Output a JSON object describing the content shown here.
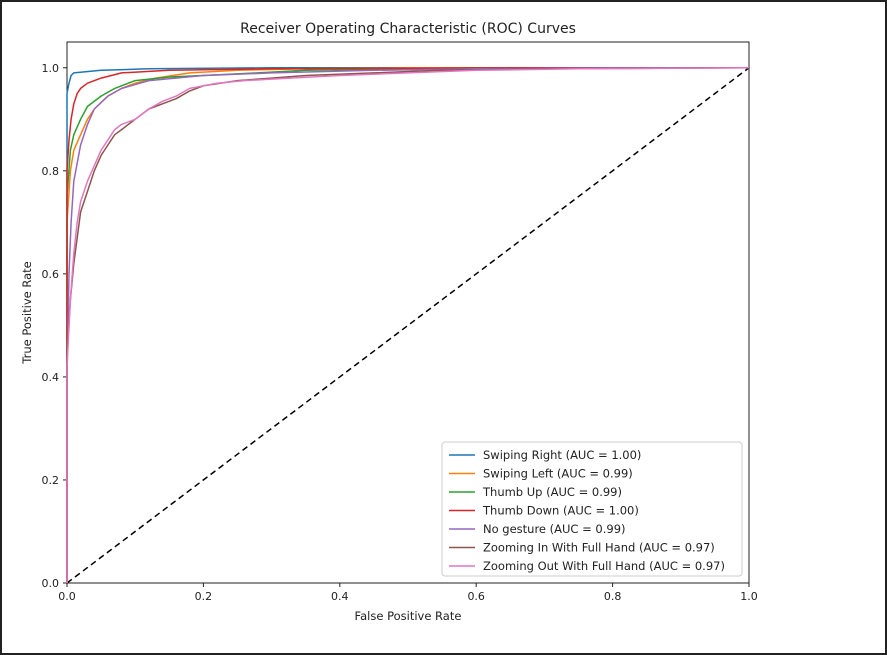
{
  "chart_data": {
    "type": "line",
    "title": "Receiver Operating Characteristic (ROC) Curves",
    "xlabel": "False Positive Rate",
    "ylabel": "True Positive Rate",
    "xlim": [
      0.0,
      1.0
    ],
    "ylim": [
      0.0,
      1.05
    ],
    "xticks": [
      "0.0",
      "0.2",
      "0.4",
      "0.6",
      "0.8",
      "1.0"
    ],
    "yticks": [
      "0.0",
      "0.2",
      "0.4",
      "0.6",
      "0.8",
      "1.0"
    ],
    "grid": false,
    "legend_position": "lower-right",
    "diagonal": {
      "style": "dashed",
      "color": "#000000",
      "points": [
        [
          0,
          0
        ],
        [
          1,
          1
        ]
      ]
    },
    "series": [
      {
        "name": "Swiping Right (AUC = 1.00)",
        "color": "#1f77b4",
        "points": [
          [
            0,
            0.0
          ],
          [
            0,
            0.95
          ],
          [
            0.003,
            0.97
          ],
          [
            0.006,
            0.985
          ],
          [
            0.01,
            0.99
          ],
          [
            0.05,
            0.995
          ],
          [
            0.12,
            0.998
          ],
          [
            0.3,
            1.0
          ],
          [
            1,
            1.0
          ]
        ]
      },
      {
        "name": "Swiping Left (AUC = 0.99)",
        "color": "#ff7f0e",
        "points": [
          [
            0,
            0.0
          ],
          [
            0,
            0.7
          ],
          [
            0.005,
            0.8
          ],
          [
            0.01,
            0.84
          ],
          [
            0.02,
            0.87
          ],
          [
            0.03,
            0.9
          ],
          [
            0.04,
            0.92
          ],
          [
            0.06,
            0.945
          ],
          [
            0.08,
            0.96
          ],
          [
            0.1,
            0.97
          ],
          [
            0.13,
            0.98
          ],
          [
            0.18,
            0.99
          ],
          [
            0.25,
            0.995
          ],
          [
            0.35,
            0.998
          ],
          [
            0.5,
            1.0
          ],
          [
            1,
            1.0
          ]
        ]
      },
      {
        "name": "Thumb Up (AUC = 0.99)",
        "color": "#2ca02c",
        "points": [
          [
            0,
            0.0
          ],
          [
            0,
            0.75
          ],
          [
            0.005,
            0.84
          ],
          [
            0.01,
            0.87
          ],
          [
            0.02,
            0.9
          ],
          [
            0.03,
            0.925
          ],
          [
            0.05,
            0.945
          ],
          [
            0.07,
            0.96
          ],
          [
            0.1,
            0.975
          ],
          [
            0.15,
            0.982
          ],
          [
            0.2,
            0.985
          ],
          [
            0.28,
            0.99
          ],
          [
            0.35,
            0.995
          ],
          [
            0.5,
            0.998
          ],
          [
            0.6,
            1.0
          ],
          [
            1,
            1.0
          ]
        ]
      },
      {
        "name": "Thumb Down (AUC = 1.00)",
        "color": "#d62728",
        "points": [
          [
            0,
            0.0
          ],
          [
            0,
            0.8
          ],
          [
            0.003,
            0.86
          ],
          [
            0.006,
            0.9
          ],
          [
            0.01,
            0.93
          ],
          [
            0.015,
            0.95
          ],
          [
            0.02,
            0.96
          ],
          [
            0.03,
            0.97
          ],
          [
            0.05,
            0.98
          ],
          [
            0.08,
            0.99
          ],
          [
            0.15,
            0.995
          ],
          [
            0.3,
            0.998
          ],
          [
            0.65,
            1.0
          ],
          [
            1,
            1.0
          ]
        ]
      },
      {
        "name": "No gesture (AUC = 0.99)",
        "color": "#9467bd",
        "points": [
          [
            0,
            0.0
          ],
          [
            0,
            0.4
          ],
          [
            0.003,
            0.6
          ],
          [
            0.006,
            0.7
          ],
          [
            0.01,
            0.78
          ],
          [
            0.02,
            0.85
          ],
          [
            0.03,
            0.89
          ],
          [
            0.04,
            0.92
          ],
          [
            0.06,
            0.945
          ],
          [
            0.08,
            0.96
          ],
          [
            0.12,
            0.975
          ],
          [
            0.2,
            0.985
          ],
          [
            0.3,
            0.99
          ],
          [
            0.45,
            0.995
          ],
          [
            0.6,
            0.998
          ],
          [
            0.8,
            1.0
          ],
          [
            1,
            1.0
          ]
        ]
      },
      {
        "name": "Zooming In With Full Hand (AUC = 0.97)",
        "color": "#8c564b",
        "points": [
          [
            0,
            0.0
          ],
          [
            0,
            0.45
          ],
          [
            0.005,
            0.55
          ],
          [
            0.01,
            0.62
          ],
          [
            0.015,
            0.67
          ],
          [
            0.02,
            0.72
          ],
          [
            0.03,
            0.76
          ],
          [
            0.04,
            0.8
          ],
          [
            0.05,
            0.83
          ],
          [
            0.06,
            0.85
          ],
          [
            0.07,
            0.87
          ],
          [
            0.08,
            0.88
          ],
          [
            0.09,
            0.89
          ],
          [
            0.1,
            0.9
          ],
          [
            0.12,
            0.92
          ],
          [
            0.14,
            0.93
          ],
          [
            0.16,
            0.94
          ],
          [
            0.18,
            0.955
          ],
          [
            0.2,
            0.965
          ],
          [
            0.25,
            0.975
          ],
          [
            0.3,
            0.98
          ],
          [
            0.35,
            0.985
          ],
          [
            0.45,
            0.99
          ],
          [
            0.55,
            0.995
          ],
          [
            0.7,
            0.998
          ],
          [
            1,
            1.0
          ]
        ]
      },
      {
        "name": "Zooming Out With Full Hand (AUC = 0.97)",
        "color": "#e377c2",
        "points": [
          [
            0,
            0.0
          ],
          [
            0,
            0.42
          ],
          [
            0.005,
            0.55
          ],
          [
            0.01,
            0.64
          ],
          [
            0.015,
            0.7
          ],
          [
            0.02,
            0.74
          ],
          [
            0.03,
            0.78
          ],
          [
            0.04,
            0.81
          ],
          [
            0.05,
            0.84
          ],
          [
            0.06,
            0.86
          ],
          [
            0.07,
            0.88
          ],
          [
            0.08,
            0.89
          ],
          [
            0.1,
            0.9
          ],
          [
            0.12,
            0.92
          ],
          [
            0.14,
            0.935
          ],
          [
            0.16,
            0.945
          ],
          [
            0.18,
            0.96
          ],
          [
            0.22,
            0.97
          ],
          [
            0.26,
            0.975
          ],
          [
            0.3,
            0.978
          ],
          [
            0.4,
            0.985
          ],
          [
            0.5,
            0.99
          ],
          [
            0.6,
            0.995
          ],
          [
            0.75,
            0.998
          ],
          [
            1,
            1.0
          ]
        ]
      }
    ]
  }
}
